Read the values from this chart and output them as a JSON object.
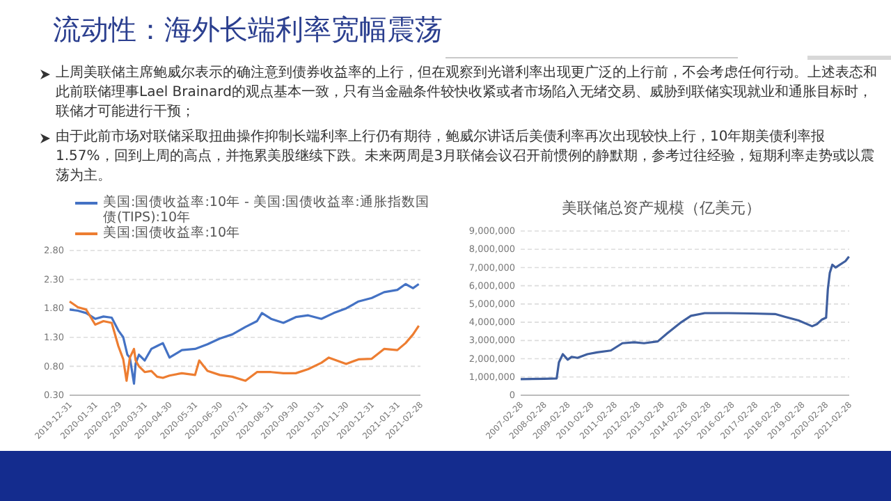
{
  "chart_data": [
    {
      "type": "other",
      "title": "流动性：海外长端利率宽幅震荡",
      "annotations": [
        "上周美联储主席鲍威尔表示的确注意到债券收益率的上行，但在观察到光谱利率出现更广泛的上行前，不会考虑任何行动。上述表态和此前联储理事Lael Brainard的观点基本一致，只有当金融条件较快收紧或者市场陷入无绪交易、威胁到联储实现就业和通胀目标时，联储才可能进行干预；",
        "由于此前市场对联储采取扭曲操作抑制长端利率上行仍有期待，鲍威尔讲话后美债利率再次出现较快上行，10年期美债利率报1.57%，回到上周的高点，并拖累美股继续下跌。未来两周是3月联储会议召开前惯例的静默期，参考过往经验，短期利率走势或以震荡为主。"
      ]
    },
    {
      "type": "line",
      "legend": "top",
      "grid": "y",
      "xlim": [
        "2019-12-31",
        "2021-02-28"
      ],
      "xticks": [
        "2019-12-31",
        "2020-01-31",
        "2020-02-29",
        "2020-03-31",
        "2020-04-30",
        "2020-05-31",
        "2020-06-30",
        "2020-07-31",
        "2020-08-31",
        "2020-09-30",
        "2020-10-31",
        "2020-11-30",
        "2020-12-31",
        "2021-01-31",
        "2021-02-28"
      ],
      "ylim": [
        0.3,
        2.8
      ],
      "yticks": [
        {
          "value": 0.3,
          "label": "0.30"
        },
        {
          "value": 0.8,
          "label": "0.80"
        },
        {
          "value": 1.3,
          "label": "1.30"
        },
        {
          "value": 1.8,
          "label": "1.80"
        },
        {
          "value": 2.3,
          "label": "2.30"
        },
        {
          "value": 2.8,
          "label": "2.80"
        }
      ],
      "series": [
        {
          "name": "美国:国债收益率:10年 - 美国:国债收益率:通胀指数国债(TIPS):10年",
          "color": "#4472c4",
          "x": [
            "2019-12-31",
            "2020-01-10",
            "2020-01-20",
            "2020-01-31",
            "2020-02-10",
            "2020-02-20",
            "2020-02-28",
            "2020-03-05",
            "2020-03-10",
            "2020-03-13",
            "2020-03-18",
            "2020-03-20",
            "2020-03-24",
            "2020-03-31",
            "2020-04-08",
            "2020-04-15",
            "2020-04-22",
            "2020-04-30",
            "2020-05-15",
            "2020-05-31",
            "2020-06-15",
            "2020-06-30",
            "2020-07-15",
            "2020-07-31",
            "2020-08-14",
            "2020-08-20",
            "2020-08-31",
            "2020-09-15",
            "2020-09-30",
            "2020-10-15",
            "2020-10-31",
            "2020-11-15",
            "2020-11-30",
            "2020-12-15",
            "2020-12-31",
            "2021-01-15",
            "2021-01-31",
            "2021-02-10",
            "2021-02-19",
            "2021-02-26"
          ],
          "values": [
            1.78,
            1.76,
            1.72,
            1.62,
            1.66,
            1.64,
            1.42,
            1.3,
            1.0,
            0.95,
            0.5,
            0.85,
            1.0,
            0.9,
            1.1,
            1.15,
            1.2,
            0.95,
            1.08,
            1.1,
            1.18,
            1.28,
            1.35,
            1.48,
            1.58,
            1.72,
            1.62,
            1.55,
            1.65,
            1.68,
            1.62,
            1.72,
            1.8,
            1.92,
            1.98,
            2.08,
            2.12,
            2.22,
            2.15,
            2.22
          ]
        },
        {
          "name": "美国:国债收益率:10年",
          "color": "#ed7d31",
          "x": [
            "2019-12-31",
            "2020-01-10",
            "2020-01-20",
            "2020-01-31",
            "2020-02-10",
            "2020-02-20",
            "2020-02-28",
            "2020-03-05",
            "2020-03-09",
            "2020-03-13",
            "2020-03-18",
            "2020-03-20",
            "2020-03-24",
            "2020-03-31",
            "2020-04-08",
            "2020-04-15",
            "2020-04-22",
            "2020-04-30",
            "2020-05-15",
            "2020-05-31",
            "2020-06-05",
            "2020-06-15",
            "2020-06-30",
            "2020-07-15",
            "2020-07-31",
            "2020-08-14",
            "2020-08-31",
            "2020-09-15",
            "2020-09-30",
            "2020-10-15",
            "2020-10-31",
            "2020-11-09",
            "2020-11-30",
            "2020-12-15",
            "2020-12-31",
            "2021-01-15",
            "2021-01-31",
            "2021-02-10",
            "2021-02-19",
            "2021-02-26"
          ],
          "values": [
            1.92,
            1.82,
            1.78,
            1.52,
            1.58,
            1.55,
            1.15,
            0.92,
            0.55,
            0.95,
            1.1,
            0.9,
            0.8,
            0.7,
            0.72,
            0.62,
            0.6,
            0.64,
            0.68,
            0.65,
            0.9,
            0.72,
            0.65,
            0.62,
            0.55,
            0.7,
            0.7,
            0.68,
            0.68,
            0.75,
            0.86,
            0.95,
            0.84,
            0.92,
            0.93,
            1.1,
            1.08,
            1.2,
            1.35,
            1.5
          ]
        }
      ]
    },
    {
      "type": "line",
      "title": "美联储总资产规模（亿美元）",
      "grid": "y",
      "xlim": [
        "2007-02-28",
        "2021-02-28"
      ],
      "xticks": [
        "2007-02-28",
        "2008-02-28",
        "2009-02-28",
        "2010-02-28",
        "2011-02-28",
        "2012-02-28",
        "2013-02-28",
        "2014-02-28",
        "2015-02-28",
        "2016-02-28",
        "2017-02-28",
        "2018-02-28",
        "2019-02-28",
        "2020-02-28",
        "2021-02-28"
      ],
      "ylim": [
        0,
        9000000
      ],
      "yticks": [
        0,
        {
          "value": 1000000,
          "label": "1,000,000"
        },
        {
          "value": 2000000,
          "label": "2,000,000"
        },
        {
          "value": 3000000,
          "label": "3,000,000"
        },
        {
          "value": 4000000,
          "label": "4,000,000"
        },
        {
          "value": 5000000,
          "label": "5,000,000"
        },
        {
          "value": 6000000,
          "label": "6,000,000"
        },
        {
          "value": 7000000,
          "label": "7,000,000"
        },
        {
          "value": 8000000,
          "label": "8,000,000"
        },
        {
          "value": 9000000,
          "label": "9,000,000"
        }
      ],
      "series": [
        {
          "color": "#3f5f9f",
          "x": [
            "2007-02-28",
            "2008-02-28",
            "2008-09-10",
            "2008-10-15",
            "2008-12-15",
            "2009-03-01",
            "2009-05-01",
            "2009-08-01",
            "2010-01-01",
            "2010-06-01",
            "2011-01-01",
            "2011-06-30",
            "2012-01-01",
            "2012-06-01",
            "2013-01-01",
            "2013-06-01",
            "2014-01-01",
            "2014-06-01",
            "2015-01-01",
            "2016-01-01",
            "2017-01-01",
            "2018-01-01",
            "2018-06-01",
            "2019-01-01",
            "2019-08-01",
            "2019-10-15",
            "2020-01-01",
            "2020-03-05",
            "2020-04-01",
            "2020-05-01",
            "2020-06-10",
            "2020-08-01",
            "2020-12-31",
            "2021-02-24"
          ],
          "values": [
            880000,
            900000,
            920000,
            1800000,
            2250000,
            1950000,
            2100000,
            2050000,
            2250000,
            2350000,
            2450000,
            2850000,
            2900000,
            2850000,
            2950000,
            3400000,
            4000000,
            4350000,
            4500000,
            4500000,
            4480000,
            4450000,
            4300000,
            4100000,
            3780000,
            3900000,
            4150000,
            4250000,
            5800000,
            6700000,
            7150000,
            7000000,
            7350000,
            7600000
          ]
        }
      ]
    }
  ]
}
